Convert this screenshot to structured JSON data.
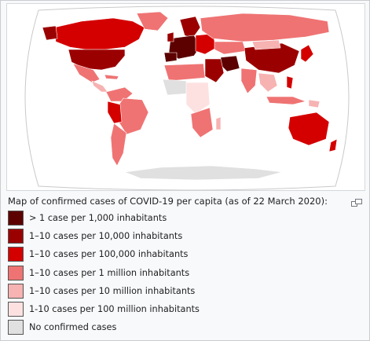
{
  "caption": "Map of confirmed cases of COVID-19 per capita (as of 22 March 2020):",
  "enlarge_icon": "magnify-clip-icon",
  "colors": {
    "ocean": "#ffffff",
    "globe_outline": "#c9c9c9",
    "border": "#ffffff"
  },
  "legend": [
    {
      "label": "> 1 case per 1,000 inhabitants",
      "color": "#5c0000"
    },
    {
      "label": "1–10 cases per 10,000 inhabitants",
      "color": "#9b0000"
    },
    {
      "label": "1–10 cases per 100,000 inhabitants",
      "color": "#d40000"
    },
    {
      "label": "1–10 cases per 1 million inhabitants",
      "color": "#ef7373"
    },
    {
      "label": "1–10 cases per 10 million inhabitants",
      "color": "#f7b2b2"
    },
    {
      "label": "1-10 cases per 100 million inhabitants",
      "color": "#fde1e1"
    },
    {
      "label": "No confirmed cases",
      "color": "#e0e0e0"
    }
  ]
}
